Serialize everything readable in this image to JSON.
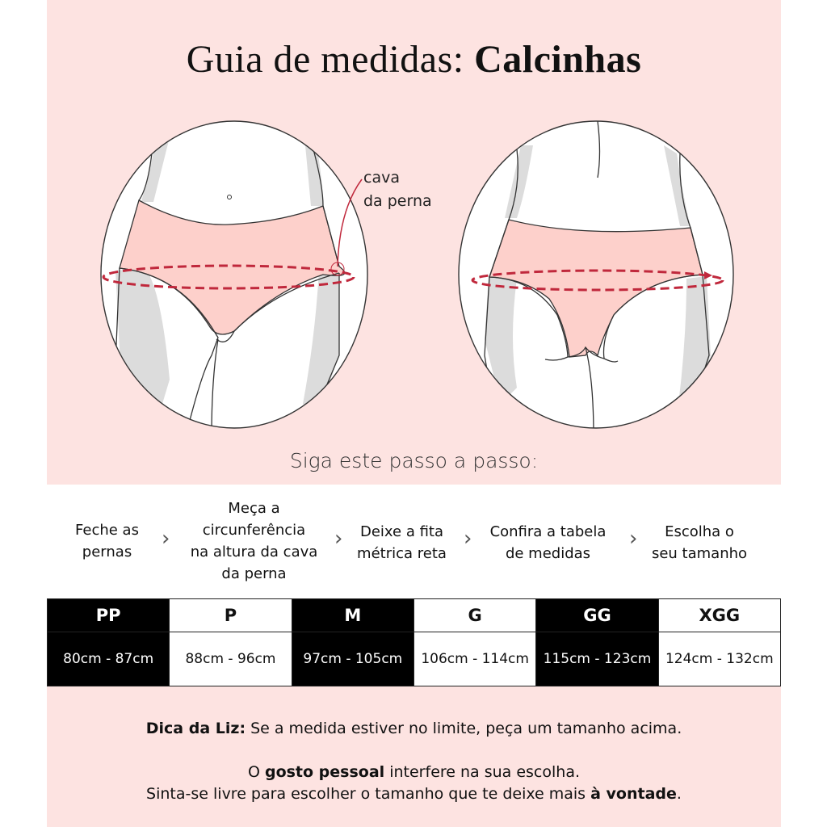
{
  "title": {
    "light": "Guia de medidas: ",
    "bold": "Calcinhas"
  },
  "illustration": {
    "front_label_line1": "cava",
    "front_label_line2": "da perna",
    "colors": {
      "background": "#fde3e1",
      "garment": "#fdd0cb",
      "measure_line": "#c0283c",
      "shadow": "#dcdcdc"
    }
  },
  "subtitle": "Siga este passo a passo:",
  "steps": [
    {
      "lines": [
        "Feche as",
        "pernas"
      ]
    },
    {
      "lines": [
        "Meça a",
        "circunferência",
        "na altura da cava",
        "da perna"
      ]
    },
    {
      "lines": [
        "Deixe a fita",
        "métrica reta"
      ]
    },
    {
      "lines": [
        "Confira a tabela",
        "de medidas"
      ]
    },
    {
      "lines": [
        "Escolha o",
        "seu tamanho"
      ]
    }
  ],
  "step_separator_icon": "chevron-right-icon",
  "size_table": {
    "sizes": [
      "PP",
      "P",
      "M",
      "G",
      "GG",
      "XGG"
    ],
    "ranges": [
      "80cm - 87cm",
      "88cm - 96cm",
      "97cm - 105cm",
      "106cm - 114cm",
      "115cm - 123cm",
      "124cm - 132cm"
    ]
  },
  "tips": {
    "tip1_bold": "Dica da Liz:",
    "tip1_text": " Se a medida estiver no limite, peça um tamanho acima.",
    "tip2_pre": "O ",
    "tip2_bold": "gosto pessoal",
    "tip2_post": " interfere na sua escolha.",
    "tip3_pre": "Sinta-se livre para escolher o tamanho que te deixe mais ",
    "tip3_bold": "à vontade",
    "tip3_post": "."
  }
}
